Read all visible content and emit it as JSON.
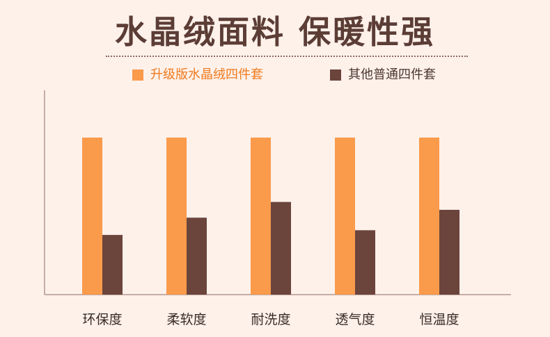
{
  "title": "水晶绒面料 保暖性强",
  "colors": {
    "background": "#fdf1ea",
    "title": "#5b3d36",
    "axis": "#8a6a62",
    "category_label": "#3a2a26"
  },
  "chart_data": {
    "type": "bar",
    "categories": [
      "环保度",
      "柔软度",
      "耐洗度",
      "透气度",
      "恒温度"
    ],
    "series": [
      {
        "name": "升级版水晶绒四件套",
        "color": "#fa9a4b",
        "label_color": "#f07a1e",
        "values": [
          100,
          100,
          100,
          100,
          100
        ]
      },
      {
        "name": "其他普通四件套",
        "color": "#6b443c",
        "label_color": "#4a3530",
        "values": [
          38,
          49,
          59,
          41,
          54
        ]
      }
    ],
    "ylim": [
      0,
      100
    ],
    "grid": false,
    "legend": "top",
    "xlabel": "",
    "ylabel": ""
  }
}
